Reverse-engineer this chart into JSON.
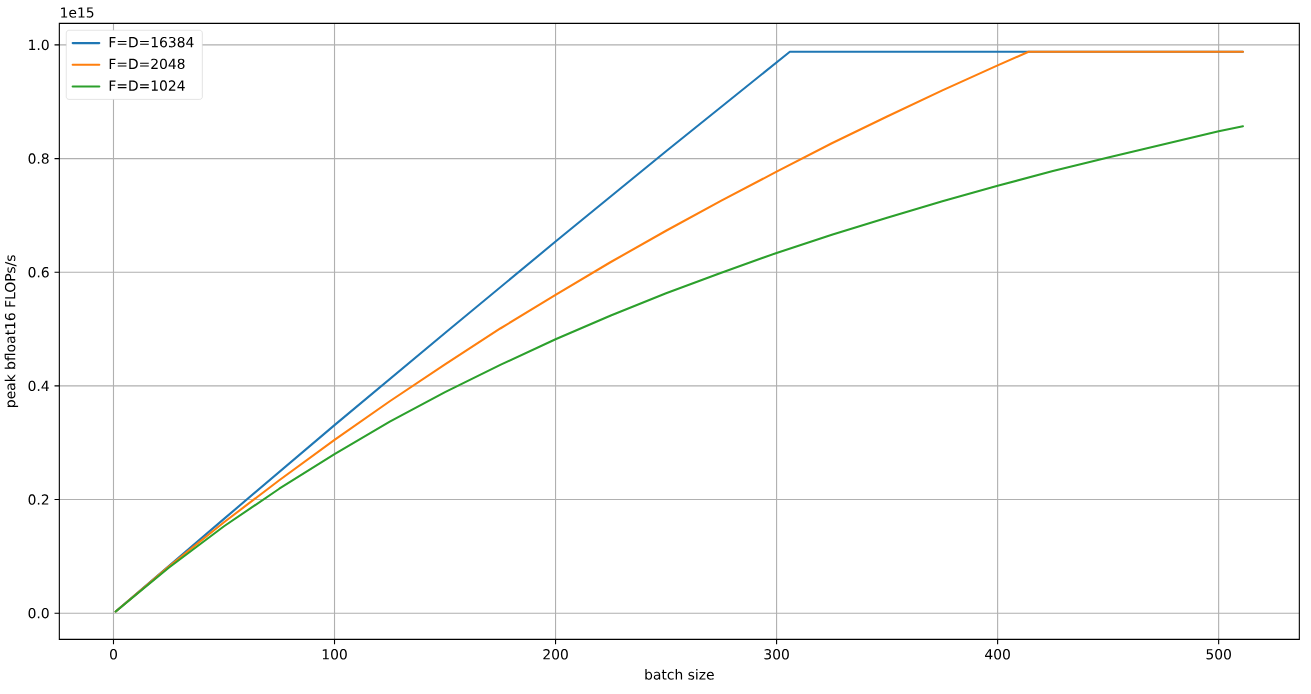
{
  "chart_data": {
    "type": "line",
    "xlabel": "batch size",
    "ylabel": "peak bfloat16 FLOPs/s",
    "annotations": [
      "1e15"
    ],
    "xlim": [
      -24.5,
      536.5
    ],
    "ylim": [
      -0.046,
      1.038
    ],
    "xticks": [
      0,
      100,
      200,
      300,
      400,
      500
    ],
    "yticks": [
      {
        "value": 0,
        "label": "0.0"
      },
      0.2,
      0.4,
      0.6,
      0.8,
      {
        "value": 1,
        "label": "1.0"
      }
    ],
    "grid": true,
    "legend": "top left",
    "series": [
      {
        "name": "F=D=16384",
        "color": "#1f77b4",
        "x": [
          1,
          50,
          100,
          150,
          200,
          250,
          306,
          511
        ],
        "values": [
          0.003,
          0.166,
          0.331,
          0.493,
          0.654,
          0.813,
          0.988,
          0.988
        ]
      },
      {
        "name": "F=D=2048",
        "color": "#ff7f0e",
        "x": [
          1,
          25,
          50,
          75,
          100,
          125,
          150,
          175,
          200,
          225,
          250,
          275,
          300,
          325,
          350,
          375,
          400,
          414,
          511
        ],
        "values": [
          0.003,
          0.082,
          0.16,
          0.234,
          0.305,
          0.373,
          0.438,
          0.501,
          0.56,
          0.618,
          0.673,
          0.726,
          0.777,
          0.827,
          0.874,
          0.92,
          0.964,
          0.988,
          0.988
        ]
      },
      {
        "name": "F=D=1024",
        "color": "#2ca02c",
        "x": [
          1,
          25,
          50,
          75,
          100,
          125,
          150,
          175,
          200,
          225,
          250,
          275,
          300,
          325,
          350,
          375,
          400,
          425,
          450,
          475,
          500,
          511
        ],
        "values": [
          0.003,
          0.08,
          0.153,
          0.219,
          0.28,
          0.337,
          0.389,
          0.437,
          0.482,
          0.524,
          0.563,
          0.599,
          0.634,
          0.666,
          0.696,
          0.725,
          0.752,
          0.778,
          0.802,
          0.825,
          0.848,
          0.857
        ]
      }
    ]
  }
}
